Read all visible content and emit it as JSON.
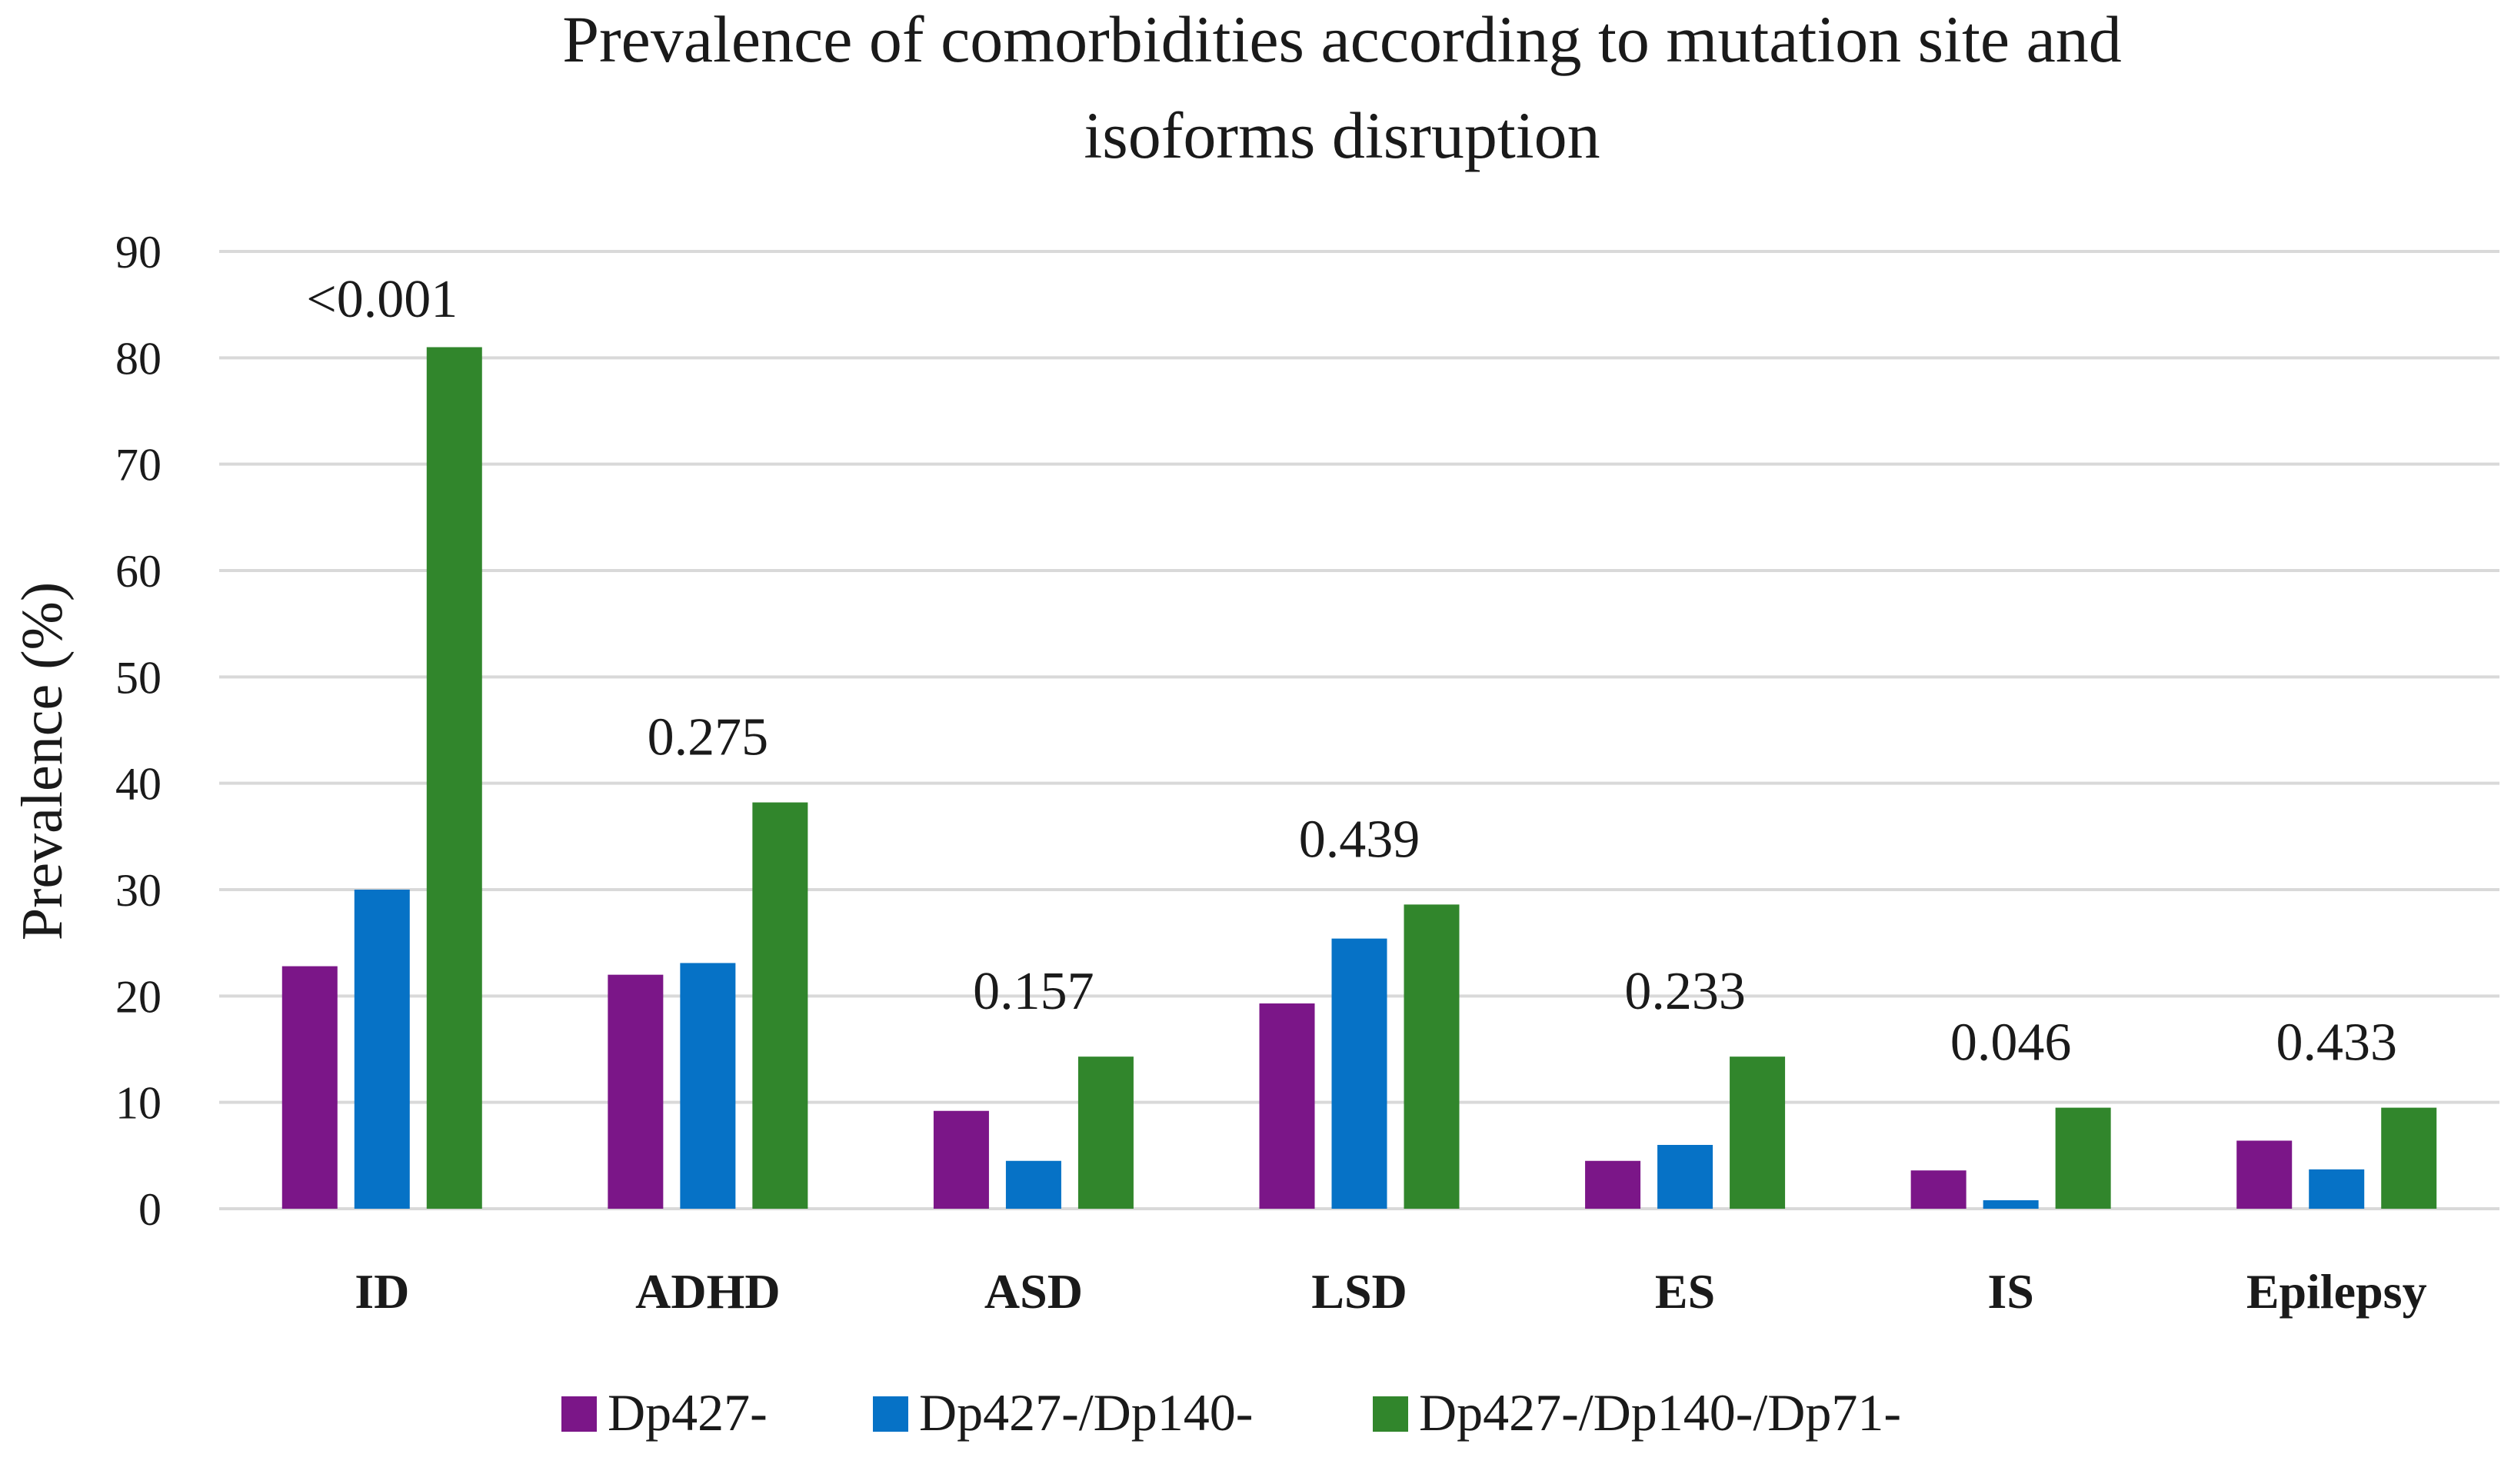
{
  "chart_data": {
    "type": "bar",
    "title": [
      "Prevalence of comorbidities according to mutation site and",
      "isoforms disruption"
    ],
    "ylabel": "Prevalence (%)",
    "xlabel": "",
    "ylim": [
      0,
      90
    ],
    "yticks": [
      0,
      10,
      20,
      30,
      40,
      50,
      60,
      70,
      80,
      90
    ],
    "grid": true,
    "legend_position": "bottom",
    "categories": [
      "ID",
      "ADHD",
      "ASD",
      "LSD",
      "ES",
      "IS",
      "Epilepsy"
    ],
    "series": [
      {
        "name": "Dp427-",
        "color": "#7b1688",
        "values": [
          22.8,
          22.0,
          9.2,
          19.3,
          4.5,
          3.6,
          6.4
        ]
      },
      {
        "name": "Dp427-/Dp140-",
        "color": "#0672c6",
        "values": [
          30.0,
          23.1,
          4.5,
          25.4,
          6.0,
          0.8,
          3.7
        ]
      },
      {
        "name": "Dp427-/Dp140-/Dp71-",
        "color": "#31862c",
        "values": [
          81.0,
          38.2,
          14.3,
          28.6,
          14.3,
          9.5,
          9.5
        ]
      }
    ],
    "annotations": [
      "<0.001",
      "0.275",
      "0.157",
      "0.439",
      "0.233",
      "0.046",
      "0.433"
    ]
  }
}
